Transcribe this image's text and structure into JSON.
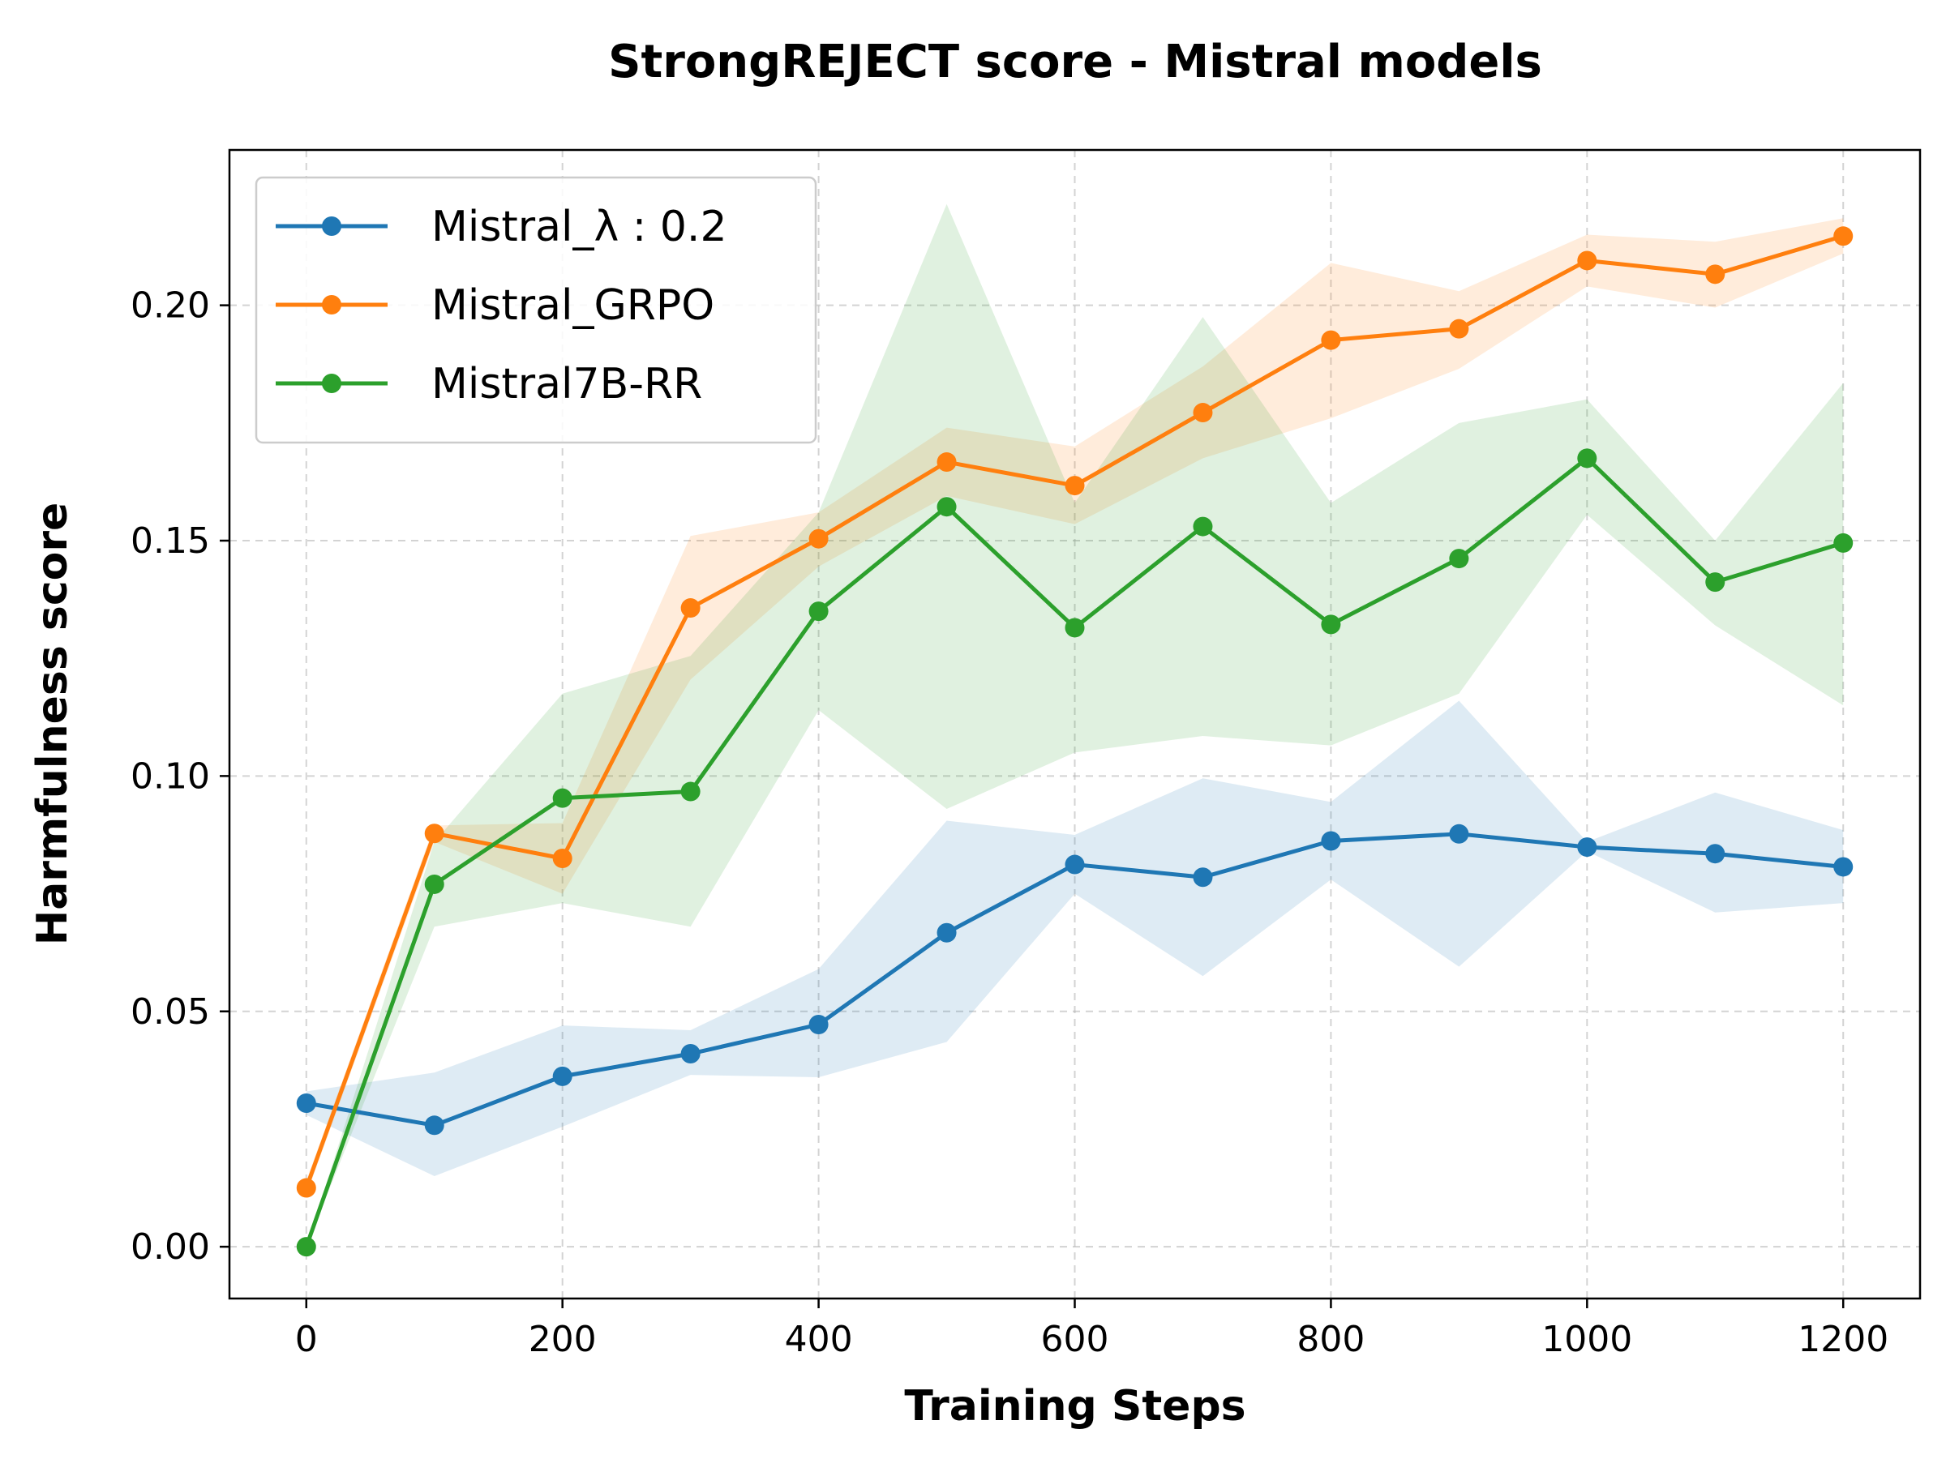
{
  "chart_data": {
    "type": "line",
    "title": "StrongREJECT score - Mistral models",
    "xlabel": "Training Steps",
    "ylabel": "Harmfulness score",
    "xlim": [
      -60,
      1260
    ],
    "ylim": [
      -0.011,
      0.233
    ],
    "xticks": [
      0,
      200,
      400,
      600,
      800,
      1000,
      1200
    ],
    "xtick_labels": [
      "0",
      "200",
      "400",
      "600",
      "800",
      "1000",
      "1200"
    ],
    "yticks": [
      0.0,
      0.05,
      0.1,
      0.15,
      0.2
    ],
    "ytick_labels": [
      "0.00",
      "0.05",
      "0.10",
      "0.15",
      "0.20"
    ],
    "grid": true,
    "legend_position": "top-left",
    "x": [
      0,
      100,
      200,
      300,
      400,
      500,
      600,
      700,
      800,
      900,
      1000,
      1100,
      1200
    ],
    "series": [
      {
        "name": "Mistral_λ : 0.2",
        "color": "#1f77b4",
        "values": [
          0.0305,
          0.0258,
          0.0362,
          0.041,
          0.0472,
          0.0667,
          0.0812,
          0.0785,
          0.0862,
          0.0877,
          0.0849,
          0.0835,
          0.0807
        ],
        "upper": [
          0.033,
          0.037,
          0.047,
          0.046,
          0.059,
          0.0905,
          0.0875,
          0.0995,
          0.0945,
          0.116,
          0.086,
          0.0965,
          0.0885
        ],
        "lower": [
          0.028,
          0.015,
          0.0255,
          0.0365,
          0.036,
          0.0435,
          0.075,
          0.0575,
          0.078,
          0.0595,
          0.084,
          0.071,
          0.073
        ]
      },
      {
        "name": "Mistral_GRPO",
        "color": "#ff7f0e",
        "values": [
          0.0125,
          0.0878,
          0.0825,
          0.1357,
          0.1504,
          0.1667,
          0.1617,
          0.1772,
          0.1926,
          0.195,
          0.2095,
          0.2066,
          0.2147
        ],
        "upper": [
          0.014,
          0.0895,
          0.09,
          0.151,
          0.156,
          0.174,
          0.17,
          0.187,
          0.209,
          0.203,
          0.215,
          0.2135,
          0.2185
        ],
        "lower": [
          0.011,
          0.086,
          0.075,
          0.1205,
          0.1445,
          0.1595,
          0.1535,
          0.1675,
          0.176,
          0.1865,
          0.204,
          0.1995,
          0.211
        ]
      },
      {
        "name": "Mistral7B-RR",
        "color": "#2ca02c",
        "values": [
          0.0,
          0.077,
          0.0953,
          0.0967,
          0.135,
          0.1572,
          0.1315,
          0.153,
          0.1322,
          0.1462,
          0.1675,
          0.1412,
          0.1495
        ],
        "upper": [
          0.0,
          0.086,
          0.1175,
          0.1255,
          0.156,
          0.2215,
          0.158,
          0.1975,
          0.158,
          0.175,
          0.18,
          0.15,
          0.1835
        ],
        "lower": [
          0.0,
          0.068,
          0.073,
          0.068,
          0.114,
          0.093,
          0.105,
          0.1085,
          0.1065,
          0.1175,
          0.1555,
          0.132,
          0.115
        ]
      }
    ]
  }
}
